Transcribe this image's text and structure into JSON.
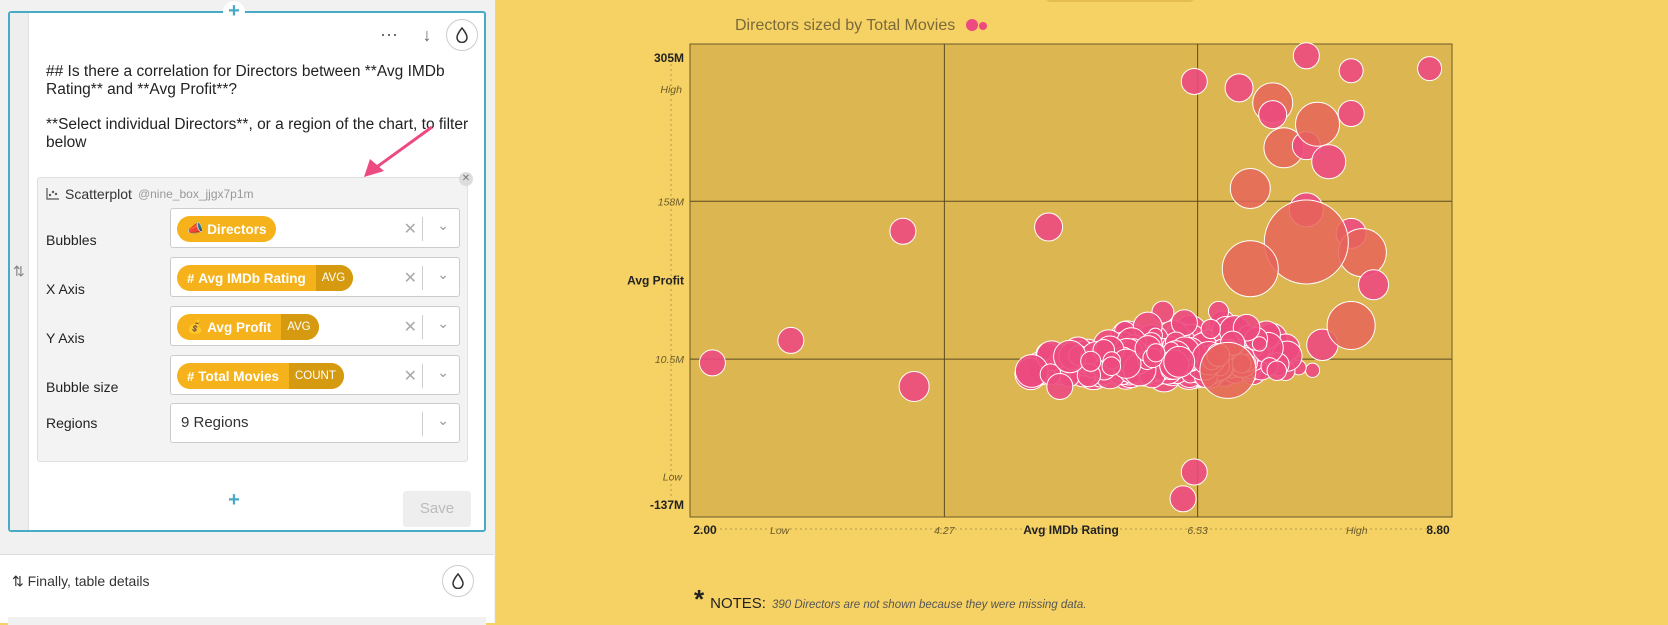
{
  "card": {
    "markdown_line1": "## Is there a correlation for Directors between **Avg IMDb Rating** and **Avg Profit**?",
    "markdown_line2": "**Select individual Directors**, or a region of the chart, to filter below",
    "more_icon": "ellipsis-icon",
    "down_icon": "arrow-down-icon",
    "theme_icon": "drop-icon"
  },
  "widget": {
    "type_label": "Scatterplot",
    "id": "@nine_box_jjgx7p1m",
    "rows": [
      {
        "label": "Bubbles",
        "pill_icon": "📣",
        "pill_text": "Directors",
        "agg": ""
      },
      {
        "label": "X Axis",
        "pill_icon": "#",
        "pill_text": "Avg IMDb Rating",
        "agg": "AVG"
      },
      {
        "label": "Y Axis",
        "pill_icon": "💰",
        "pill_text": "Avg Profit",
        "agg": "AVG"
      },
      {
        "label": "Bubble size",
        "pill_icon": "#",
        "pill_text": "Total Movies",
        "agg": "COUNT"
      }
    ],
    "regions_label": "Regions",
    "regions_value": "9 Regions",
    "save_label": "Save"
  },
  "card2": {
    "title": "Finally, table details"
  },
  "chart_data": {
    "type": "scatter",
    "title": "Directors sized by Total Movies",
    "xlabel": "Avg IMDb Rating",
    "ylabel": "Avg Profit",
    "xlim": [
      2.0,
      8.8
    ],
    "ylim": [
      -137,
      305
    ],
    "y_unit": "M",
    "x_ticks": [
      {
        "v": 2.0,
        "t": "2.00"
      },
      {
        "v": 4.27,
        "t": "4.27"
      },
      {
        "v": 6.53,
        "t": "6.53"
      },
      {
        "v": 8.8,
        "t": "8.80"
      }
    ],
    "y_ticks": [
      {
        "v": 305,
        "t": "305M"
      },
      {
        "v": 158,
        "t": "158M"
      },
      {
        "v": 10.5,
        "t": "10.5M"
      },
      {
        "v": -137,
        "t": "-137M"
      }
    ],
    "x_region_labels": [
      "Low",
      "High"
    ],
    "y_region_labels": [
      "High",
      "Low"
    ],
    "grid": true,
    "colors": {
      "bubble": "#ec4a80",
      "bubble_large": "#e6655a",
      "stroke": "#ffffff",
      "plot_bg": "#dcb650",
      "page_bg": "#f6d264"
    }
  },
  "notes": {
    "label": "NOTES:",
    "text": "390 Directors are not shown because they were missing data."
  }
}
